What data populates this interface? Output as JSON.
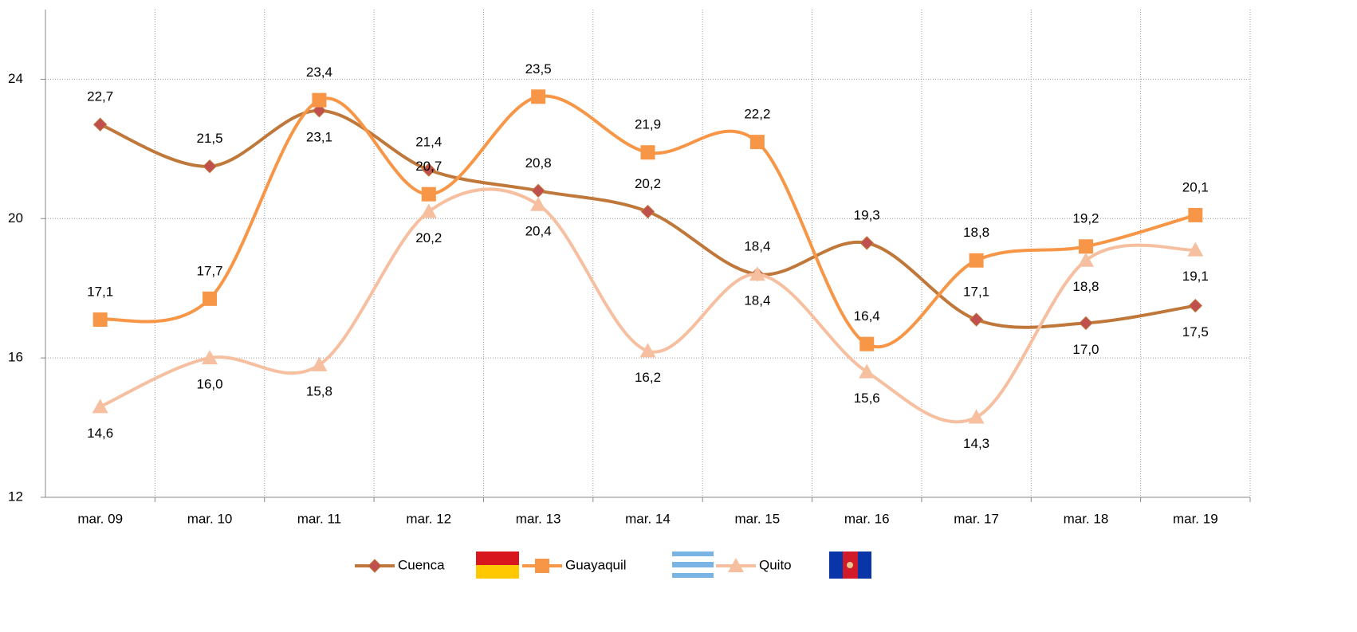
{
  "chart_data": {
    "type": "line",
    "categories": [
      "mar. 09",
      "mar. 10",
      "mar. 11",
      "mar. 12",
      "mar. 13",
      "mar. 14",
      "mar. 15",
      "mar. 16",
      "mar. 17",
      "mar. 18",
      "mar. 19"
    ],
    "series": [
      {
        "name": "Cuenca",
        "color": "#c0773a",
        "marker_color": "#c0504d",
        "marker": "diamond",
        "values": [
          22.7,
          21.5,
          23.1,
          21.4,
          20.8,
          20.2,
          18.4,
          19.3,
          17.1,
          17.0,
          17.5
        ],
        "value_labels": [
          "22,7",
          "21,5",
          "23,1",
          "21,4",
          "20,8",
          "20,2",
          "18,4",
          "19,3",
          "17,1",
          "17,0",
          "17,5"
        ]
      },
      {
        "name": "Guayaquil",
        "color": "#f79646",
        "marker_color": "#f79646",
        "marker": "square",
        "values": [
          17.1,
          17.7,
          23.4,
          20.7,
          23.5,
          21.9,
          22.2,
          16.4,
          18.8,
          19.2,
          20.1
        ],
        "value_labels": [
          "17,1",
          "17,7",
          "23,4",
          "20,7",
          "23,5",
          "21,9",
          "22,2",
          "16,4",
          "18,8",
          "19,2",
          "20,1"
        ]
      },
      {
        "name": "Quito",
        "color": "#f6bfa0",
        "marker_color": "#f6bfa0",
        "marker": "triangle",
        "values": [
          14.6,
          16.0,
          15.8,
          20.2,
          20.4,
          16.2,
          18.4,
          15.6,
          14.3,
          18.8,
          19.1
        ],
        "value_labels": [
          "14,6",
          "16,0",
          "15,8",
          "20,2",
          "20,4",
          "16,2",
          "18,4",
          "15,6",
          "14,3",
          "18,8",
          "19,1"
        ]
      }
    ],
    "ylim": [
      12,
      26
    ],
    "yticks": [
      12,
      16,
      20,
      24
    ],
    "grid": true,
    "smooth": true,
    "legend": "bottom"
  }
}
